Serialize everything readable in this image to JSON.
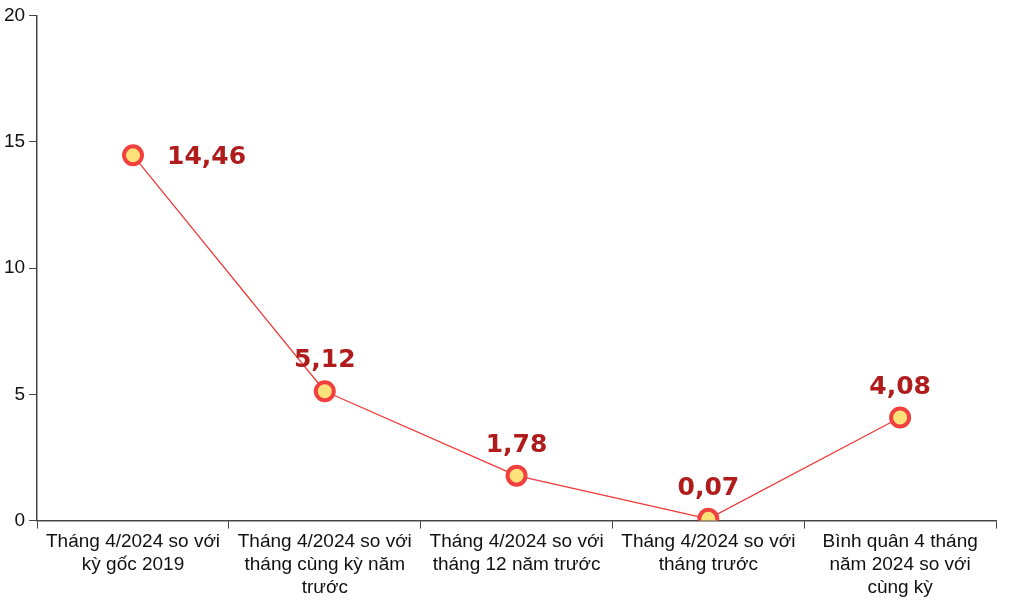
{
  "chart_data": {
    "type": "line",
    "categories": [
      "Tháng 4/2024 so với kỳ gốc 2019",
      "Tháng 4/2024 so với tháng cùng kỳ năm trước",
      "Tháng 4/2024 so với tháng 12 năm trước",
      "Tháng 4/2024 so với tháng trước",
      "Bình quân 4 tháng năm 2024 so với cùng kỳ"
    ],
    "series": [
      {
        "color": "#f03a3a",
        "values": [
          14.46,
          5.12,
          1.78,
          0.07,
          4.08
        ],
        "value_labels": [
          "14,46",
          "5,12",
          "1,78",
          "0,07",
          "4,08"
        ]
      }
    ],
    "ylim": [
      0,
      20
    ],
    "yticks": [
      0,
      5,
      10,
      15,
      20
    ],
    "grid": false,
    "legend": false,
    "marker": "circle",
    "line_style": "solid"
  }
}
